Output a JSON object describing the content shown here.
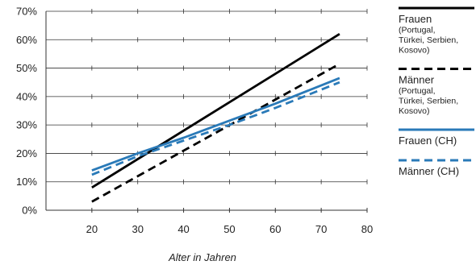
{
  "chart_data": {
    "type": "line",
    "xlabel": "Alter in Jahren",
    "ylabel": "",
    "xlim": [
      10,
      80
    ],
    "ylim": [
      0,
      70
    ],
    "x_ticks": [
      "20",
      "30",
      "40",
      "50",
      "60",
      "70",
      "80"
    ],
    "y_ticks": [
      "0%",
      "10%",
      "20%",
      "30%",
      "40%",
      "50%",
      "60%",
      "70%"
    ],
    "grid": "horizontal",
    "legend_position": "right",
    "series": [
      {
        "name": "Frauen",
        "subtitle": [
          "(Portugal,",
          "Türkei, Serbien,",
          "Kosovo)"
        ],
        "color": "#000000",
        "style": "solid",
        "x": [
          20,
          74
        ],
        "y": [
          8,
          62
        ]
      },
      {
        "name": "Männer",
        "subtitle": [
          "(Portugal,",
          "Türkei, Serbien,",
          "Kosovo)"
        ],
        "color": "#000000",
        "style": "dashed",
        "x": [
          20,
          74
        ],
        "y": [
          3,
          51.5
        ]
      },
      {
        "name": "Frauen (CH)",
        "subtitle": [],
        "color": "#2a7ab8",
        "style": "solid",
        "x": [
          20,
          30,
          40,
          50,
          60,
          74
        ],
        "y": [
          14,
          20,
          25.5,
          31.5,
          37.5,
          46.5
        ]
      },
      {
        "name": "Männer (CH)",
        "subtitle": [],
        "color": "#2a7ab8",
        "style": "dashed",
        "x": [
          20,
          30,
          40,
          50,
          60,
          74
        ],
        "y": [
          12.5,
          19,
          24.5,
          30,
          36,
          45
        ]
      }
    ]
  }
}
